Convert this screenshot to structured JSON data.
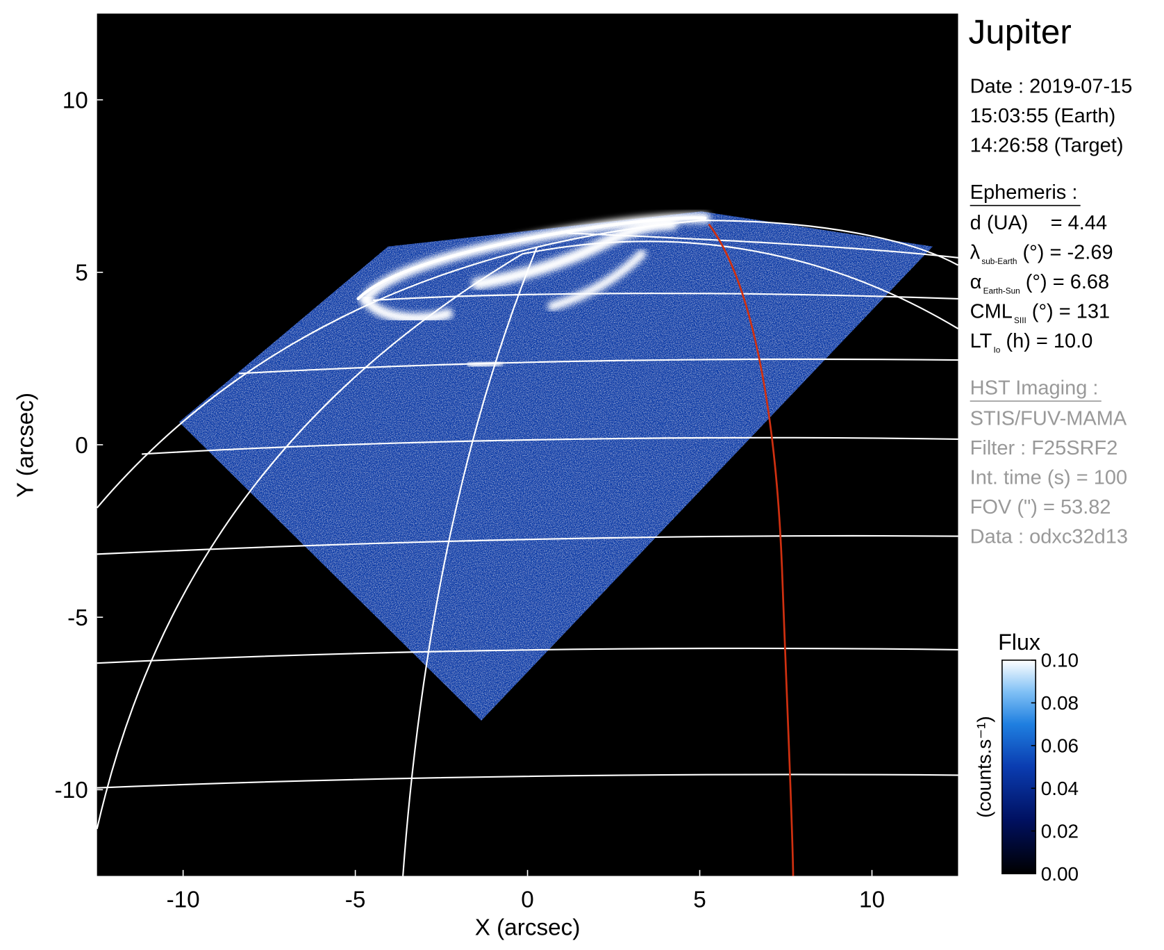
{
  "chart_data": {
    "type": "image",
    "title": "Jupiter",
    "x_label": "X (arcsec)",
    "y_label": "Y (arcsec)",
    "xlim": [
      -12.5,
      12.5
    ],
    "ylim": [
      -12.5,
      12.5
    ],
    "xticks": [
      -10,
      -5,
      0,
      5,
      10
    ],
    "yticks": [
      -10,
      -5,
      0,
      5,
      10
    ],
    "colorbar": {
      "title": "Flux",
      "label": "(counts.s⁻¹)",
      "clim": [
        0,
        0.1
      ],
      "ticks": [
        {
          "value": 0.1,
          "label": "0.10"
        },
        {
          "value": 0.08,
          "label": "0.08"
        },
        {
          "value": 0.06,
          "label": "0.06"
        },
        {
          "value": 0.04,
          "label": "0.04"
        },
        {
          "value": 0.02,
          "label": "0.02"
        },
        {
          "value": 0,
          "label": "0.00"
        }
      ]
    },
    "info": {
      "date": [
        "Date : 2019-07-15",
        "15:03:55 (Earth)",
        "14:26:58 (Target)"
      ],
      "ephemeris": {
        "heading": "Ephemeris :",
        "rows": [
          {
            "main": "d (UA)    = 4.44"
          },
          {
            "main": "λ",
            "sub": "sub-Earth",
            "rest": " (°) = -2.69"
          },
          {
            "main": "α",
            "sub": "Earth-Sun",
            "rest": " (°) = 6.68"
          },
          {
            "main": "CML",
            "sub": "SIII",
            "rest": " (°) = 131"
          },
          {
            "main": "LT",
            "sub": "Io",
            "rest": " (h) = 10.0"
          }
        ]
      },
      "imaging": {
        "heading": "HST Imaging :",
        "rows": [
          "STIS/FUV-MAMA",
          "Filter : F25SRF2",
          "Int. time (s) = 100",
          "FOV (\") = 53.82",
          "Data : odxc32d13"
        ]
      }
    }
  }
}
